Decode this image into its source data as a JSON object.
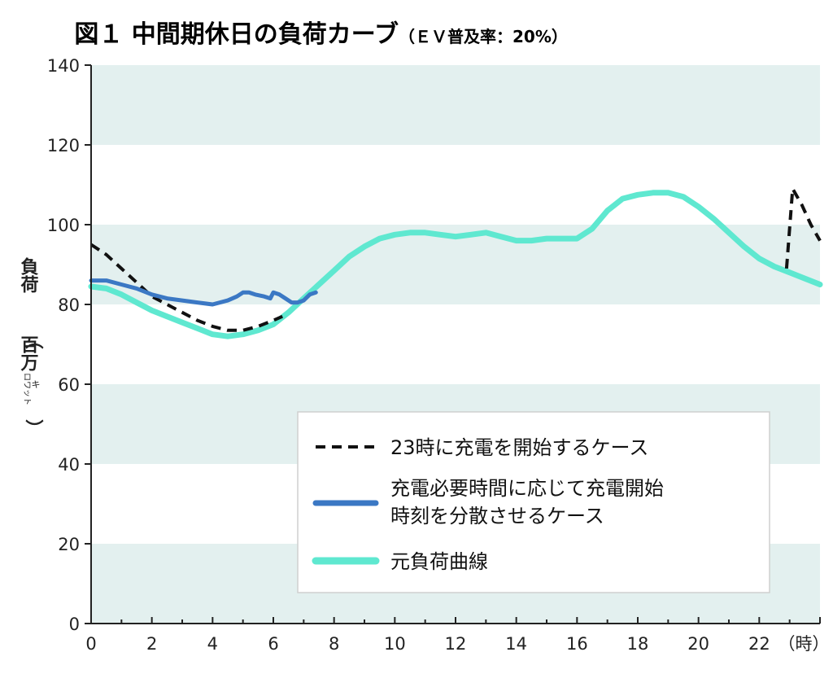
{
  "chart_data": {
    "type": "line",
    "title": "図１ 中間期休日の負荷カーブ",
    "subtitle": "（ＥＶ普及率：20%）",
    "ylabel": {
      "main": "負荷",
      "unit_open": "（",
      "unit": "百万",
      "unit_small_top": "キ",
      "unit_small_bottom": "ロワット",
      "unit_close": "）"
    },
    "xlabel": "（時）",
    "xlim": [
      0,
      24
    ],
    "ylim": [
      0,
      140
    ],
    "x_ticks": [
      "0",
      "2",
      "4",
      "6",
      "8",
      "10",
      "12",
      "14",
      "16",
      "18",
      "20",
      "22"
    ],
    "y_ticks": [
      "0",
      "20",
      "40",
      "60",
      "80",
      "100",
      "120",
      "140"
    ],
    "band_color": "#e3f0ef",
    "series": [
      {
        "name": "23時に充電を開始するケース",
        "color": "#111111",
        "style": "dashed",
        "points": [
          [
            0,
            95
          ],
          [
            0.5,
            92.5
          ],
          [
            1,
            89
          ],
          [
            1.5,
            85.5
          ],
          [
            2,
            82
          ],
          [
            2.5,
            80
          ],
          [
            3,
            78
          ],
          [
            3.5,
            76
          ],
          [
            4,
            74.5
          ],
          [
            4.5,
            73.5
          ],
          [
            5,
            73.5
          ],
          [
            5.5,
            74.5
          ],
          [
            6,
            76
          ],
          [
            6.3,
            77
          ],
          [
            22.9,
            89
          ],
          [
            23.1,
            109
          ],
          [
            23.4,
            105
          ],
          [
            23.7,
            100
          ],
          [
            24,
            96
          ]
        ]
      },
      {
        "name": "充電必要時間に応じて充電開始時刻を分散させるケース",
        "name_line1": "充電必要時間に応じて充電開始",
        "name_line2": "時刻を分散させるケース",
        "color": "#3b78c4",
        "style": "solid",
        "points": [
          [
            0,
            86
          ],
          [
            0.5,
            86
          ],
          [
            1,
            85
          ],
          [
            1.5,
            84
          ],
          [
            2,
            82.5
          ],
          [
            2.5,
            81.5
          ],
          [
            3,
            81
          ],
          [
            3.5,
            80.5
          ],
          [
            4,
            80
          ],
          [
            4.5,
            81
          ],
          [
            4.8,
            82
          ],
          [
            5,
            83
          ],
          [
            5.2,
            83
          ],
          [
            5.4,
            82.5
          ],
          [
            5.7,
            82
          ],
          [
            5.9,
            81.5
          ],
          [
            6,
            83
          ],
          [
            6.2,
            82.5
          ],
          [
            6.4,
            81.5
          ],
          [
            6.6,
            80.5
          ],
          [
            6.8,
            80.5
          ],
          [
            7,
            81
          ],
          [
            7.2,
            82.5
          ],
          [
            7.4,
            83
          ]
        ]
      },
      {
        "name": "元負荷曲線",
        "color": "#5fe8d0",
        "style": "solid",
        "points": [
          [
            0,
            84.5
          ],
          [
            0.5,
            84
          ],
          [
            1,
            82.5
          ],
          [
            1.5,
            80.5
          ],
          [
            2,
            78.5
          ],
          [
            2.5,
            77
          ],
          [
            3,
            75.5
          ],
          [
            3.5,
            74
          ],
          [
            4,
            72.5
          ],
          [
            4.5,
            72
          ],
          [
            5,
            72.5
          ],
          [
            5.5,
            73.5
          ],
          [
            6,
            75
          ],
          [
            6.5,
            78
          ],
          [
            7,
            81.5
          ],
          [
            7.5,
            85
          ],
          [
            8,
            88.5
          ],
          [
            8.5,
            92
          ],
          [
            9,
            94.5
          ],
          [
            9.5,
            96.5
          ],
          [
            10,
            97.5
          ],
          [
            10.5,
            98
          ],
          [
            11,
            98
          ],
          [
            11.5,
            97.5
          ],
          [
            12,
            97
          ],
          [
            12.5,
            97.5
          ],
          [
            13,
            98
          ],
          [
            13.5,
            97
          ],
          [
            14,
            96
          ],
          [
            14.5,
            96
          ],
          [
            15,
            96.5
          ],
          [
            15.5,
            96.5
          ],
          [
            16,
            96.5
          ],
          [
            16.5,
            99
          ],
          [
            17,
            103.5
          ],
          [
            17.5,
            106.5
          ],
          [
            18,
            107.5
          ],
          [
            18.5,
            108
          ],
          [
            19,
            108
          ],
          [
            19.5,
            107
          ],
          [
            20,
            104.5
          ],
          [
            20.5,
            101.5
          ],
          [
            21,
            98
          ],
          [
            21.5,
            94.5
          ],
          [
            22,
            91.5
          ],
          [
            22.5,
            89.5
          ],
          [
            23,
            88
          ],
          [
            23.5,
            86.5
          ],
          [
            24,
            85
          ]
        ]
      }
    ]
  }
}
